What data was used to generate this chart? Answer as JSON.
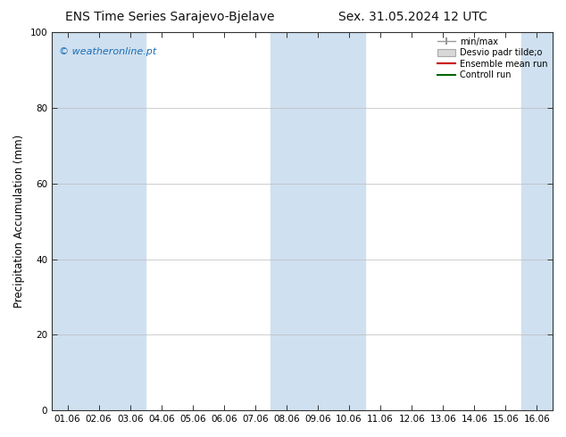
{
  "title_left": "ENS Time Series Sarajevo-Bjelave",
  "title_right": "Sex. 31.05.2024 12 UTC",
  "ylabel": "Precipitation Accumulation (mm)",
  "watermark": "© weatheronline.pt",
  "ylim": [
    0,
    100
  ],
  "yticks": [
    0,
    20,
    40,
    60,
    80,
    100
  ],
  "x_labels": [
    "01.06",
    "02.06",
    "03.06",
    "04.06",
    "05.06",
    "06.06",
    "07.06",
    "08.06",
    "09.06",
    "10.06",
    "11.06",
    "12.06",
    "13.06",
    "14.06",
    "15.06",
    "16.06"
  ],
  "shaded_bands": [
    0,
    1,
    2,
    7,
    8,
    9,
    15
  ],
  "band_color": "#cfe0f0",
  "background_color": "#ffffff",
  "plot_bg_color": "#ffffff",
  "legend_entries": [
    {
      "label": "min/max",
      "color": "#a0a0a0",
      "style": "errorbar"
    },
    {
      "label": "Desvio padr tilde;o",
      "color": "#c0c0c0",
      "style": "box"
    },
    {
      "label": "Ensemble mean run",
      "color": "#cc0000",
      "style": "line"
    },
    {
      "label": "Controll run",
      "color": "#006600",
      "style": "line"
    }
  ],
  "title_fontsize": 10,
  "tick_fontsize": 7.5,
  "label_fontsize": 8.5,
  "watermark_fontsize": 8,
  "watermark_color": "#1a6eb5"
}
